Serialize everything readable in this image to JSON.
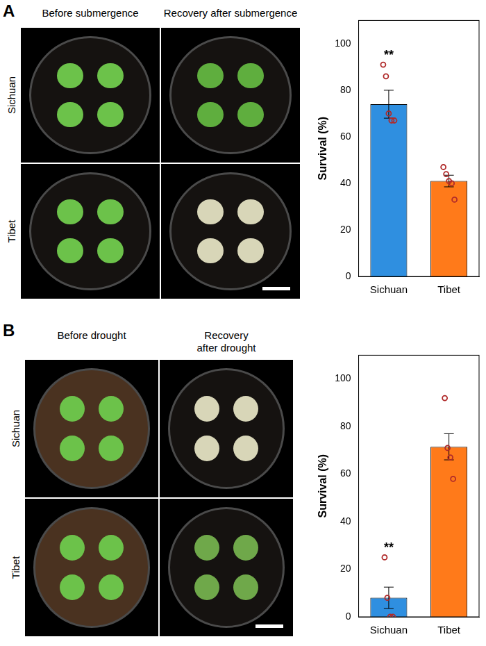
{
  "figure": {
    "panels": [
      {
        "letter": "A",
        "columns": [
          [
            "Before submergence"
          ],
          [
            "Recovery after submergence"
          ]
        ],
        "rows": [
          "Sichuan",
          "Tibet"
        ]
      },
      {
        "letter": "B",
        "columns": [
          [
            "Before drought"
          ],
          [
            "Recovery",
            "after drought"
          ]
        ],
        "rows": [
          "Sichuan",
          "Tibet"
        ]
      }
    ]
  },
  "chart_data": [
    {
      "type": "bar",
      "y_label": "Survival (%)",
      "categories": [
        "Sichuan",
        "Tibet"
      ],
      "values": [
        74,
        41
      ],
      "error_bars": [
        6,
        2.5
      ],
      "points": [
        [
          91,
          86,
          70,
          67,
          67
        ],
        [
          47,
          44,
          41,
          40,
          33
        ]
      ],
      "points_color": "#b02a2a",
      "marker": "circle",
      "colors": [
        "#2f8fe0",
        "#ff7a1a"
      ],
      "ylim": [
        0,
        110
      ],
      "yticks": [
        0,
        20,
        40,
        60,
        80,
        100
      ],
      "grid": false,
      "annotations": [
        {
          "category": "Sichuan",
          "text": "**"
        }
      ]
    },
    {
      "type": "bar",
      "y_label": "Survival (%)",
      "categories": [
        "Sichuan",
        "Tibet"
      ],
      "values": [
        8,
        71.5
      ],
      "error_bars": [
        4.5,
        5.5
      ],
      "points": [
        [
          25,
          8,
          0,
          0
        ],
        [
          92,
          71,
          67,
          58
        ]
      ],
      "points_color": "#b02a2a",
      "marker": "circle",
      "colors": [
        "#2f8fe0",
        "#ff7a1a"
      ],
      "ylim": [
        0,
        110
      ],
      "yticks": [
        0,
        20,
        40,
        60,
        80,
        100
      ],
      "grid": false,
      "annotations": [
        {
          "category": "Sichuan",
          "text": "**"
        }
      ]
    }
  ]
}
